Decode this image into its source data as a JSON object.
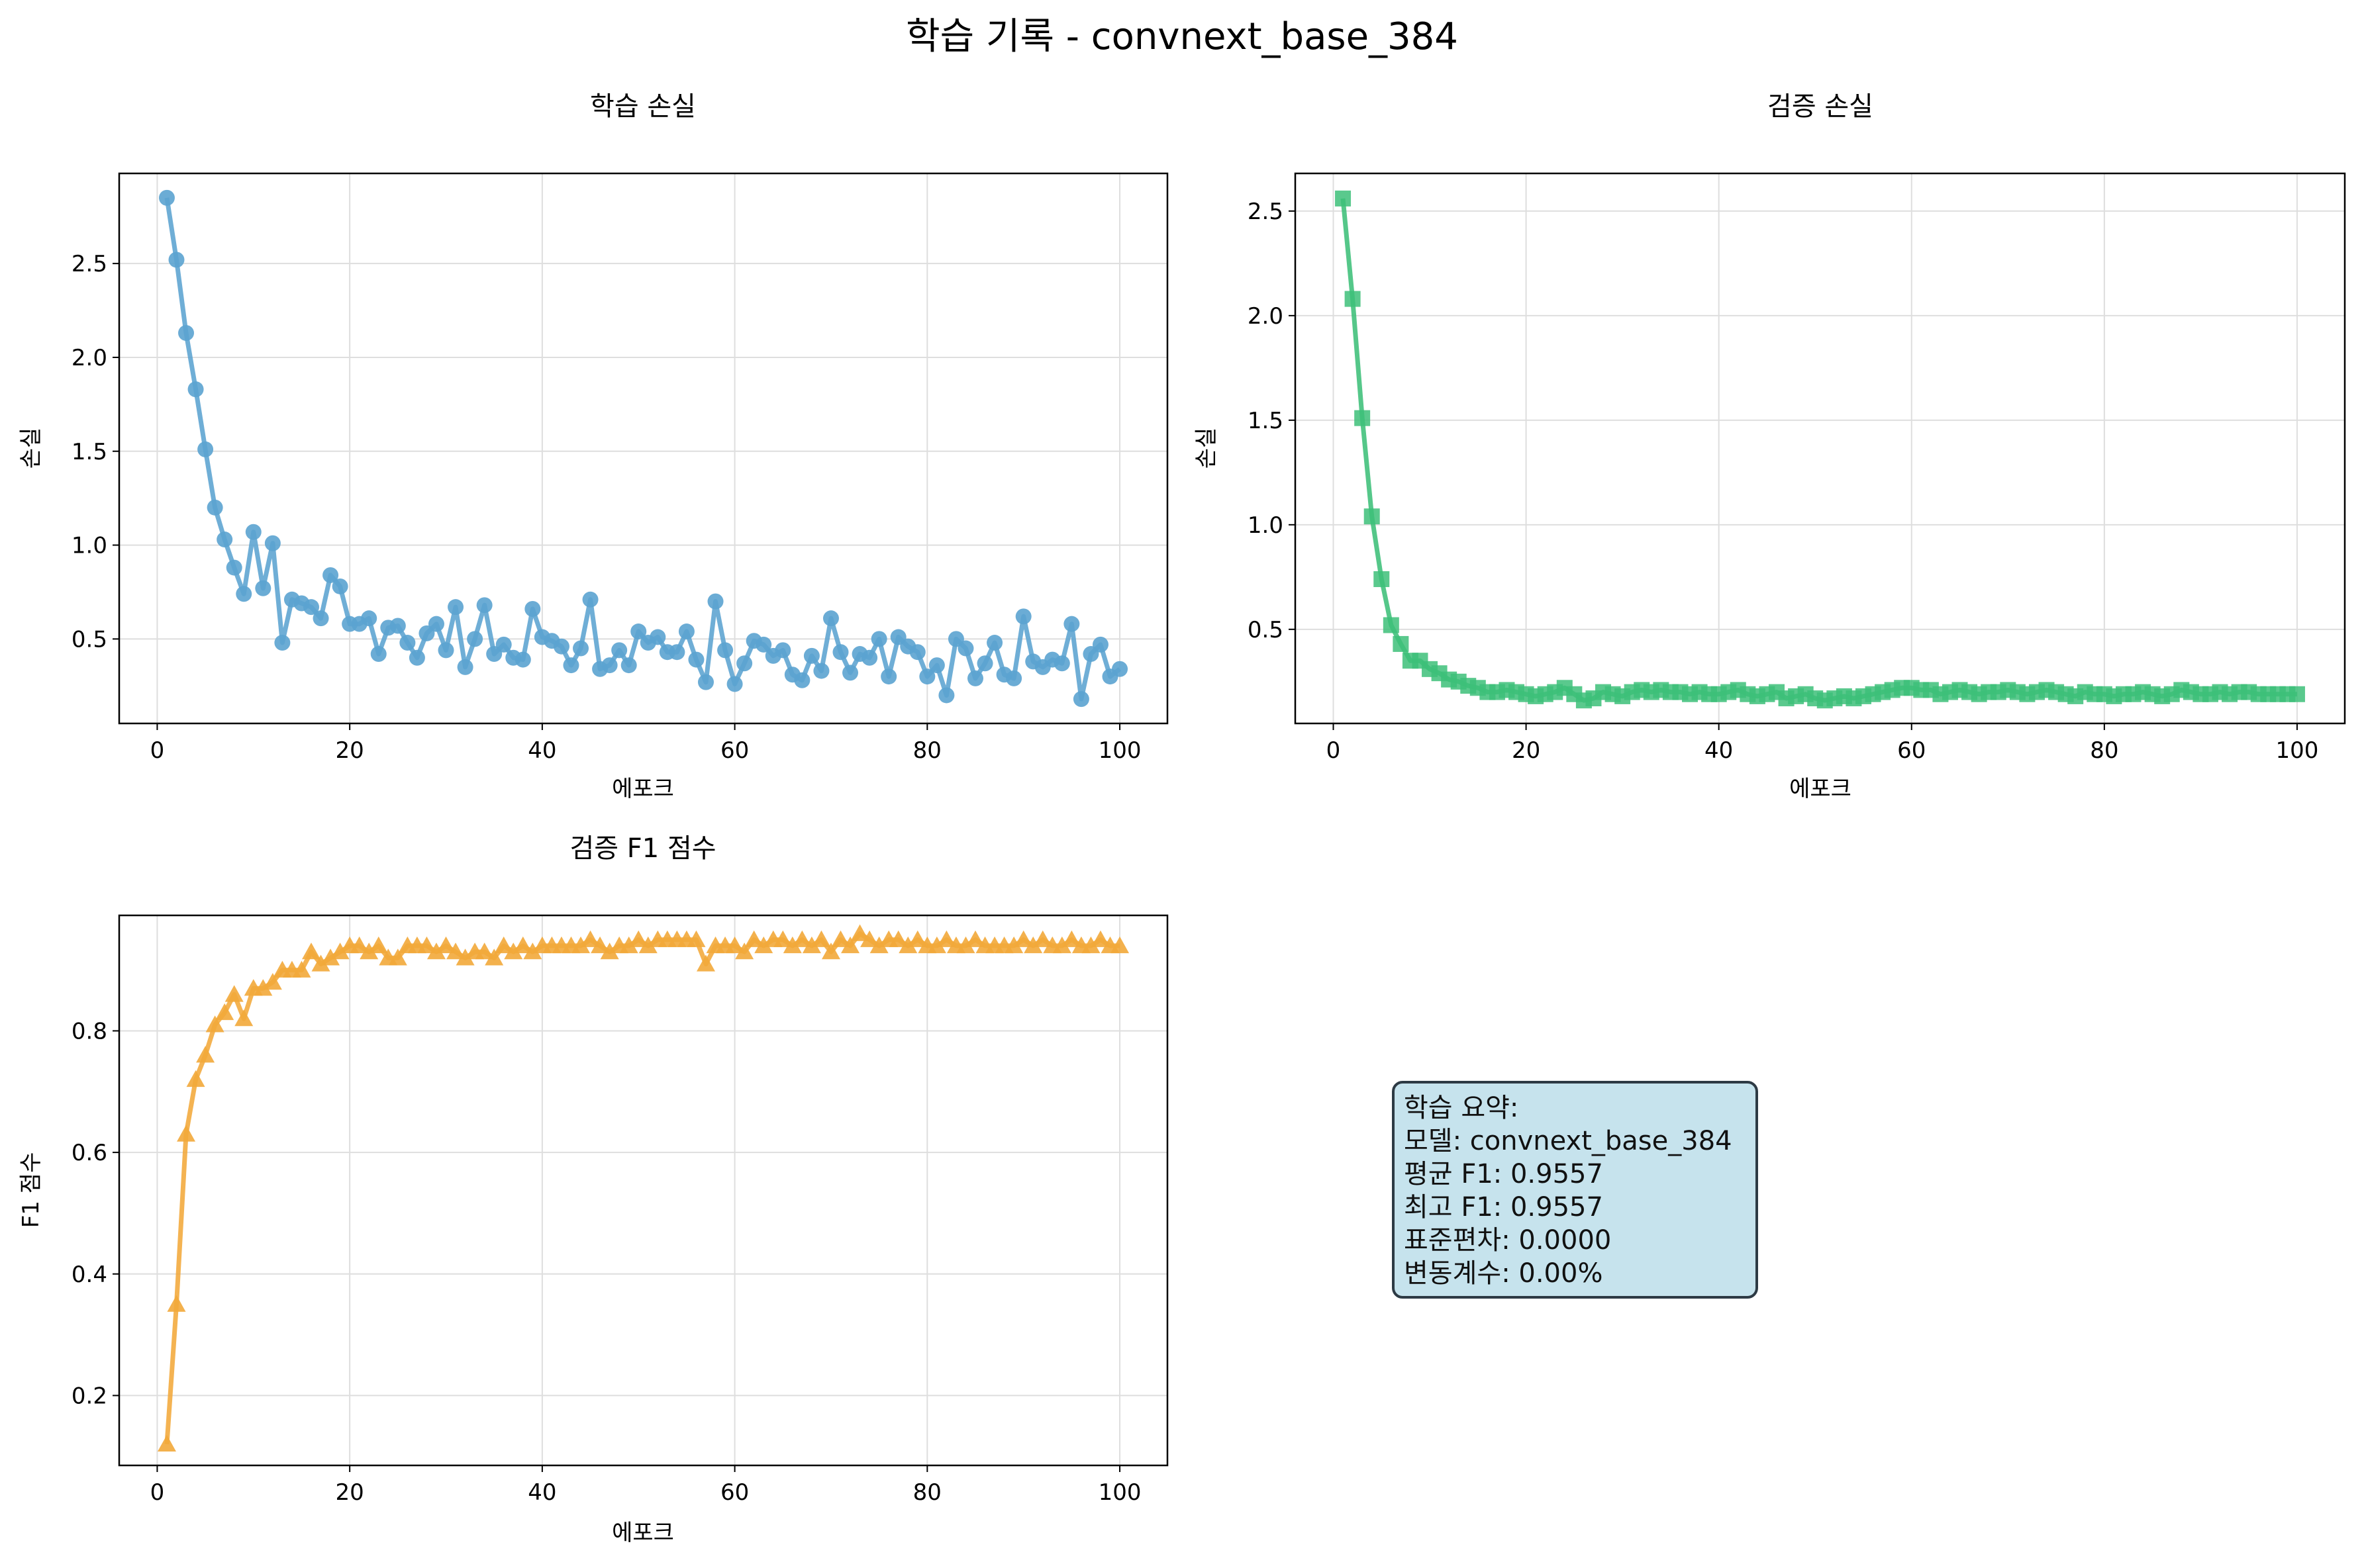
{
  "title": "학습 기록 - convnext_base_384",
  "panels": {
    "train_loss": {
      "title": "학습 손실",
      "xlabel": "에포크",
      "ylabel": "손실"
    },
    "val_loss": {
      "title": "검증 손실",
      "xlabel": "에포크",
      "ylabel": "손실"
    },
    "val_f1": {
      "title": "검증 F1 점수",
      "xlabel": "에포크",
      "ylabel": "F1 점수"
    }
  },
  "summary": {
    "heading": "학습 요약:",
    "model": "모델: convnext_base_384",
    "mean_f1": "평균 F1: 0.9557",
    "best_f1": "최고 F1: 0.9557",
    "std": "표준편차: 0.0000",
    "cv": "변동계수: 0.00%"
  },
  "colors": {
    "train_loss": "#5ba3d0",
    "val_loss": "#3dbf79",
    "val_f1": "#f2a83a",
    "summary_bg": "#c6e3ed",
    "summary_border": "#2d3a44"
  },
  "chart_data": [
    {
      "type": "line",
      "name": "train_loss",
      "marker": "circle",
      "title": "학습 손실",
      "xlabel": "에포크",
      "ylabel": "손실",
      "grid": true,
      "xlim": [
        -3.95,
        104.95
      ],
      "ylim": [
        0.05,
        2.98
      ],
      "xticks": [
        0,
        20,
        40,
        60,
        80,
        100
      ],
      "yticks": [
        0.5,
        1.0,
        1.5,
        2.0,
        2.5
      ],
      "ytick_labels": [
        "0.5",
        "1.0",
        "1.5",
        "2.0",
        "2.5"
      ],
      "x": [
        1,
        2,
        3,
        4,
        5,
        6,
        7,
        8,
        9,
        10,
        11,
        12,
        13,
        14,
        15,
        16,
        17,
        18,
        19,
        20,
        21,
        22,
        23,
        24,
        25,
        26,
        27,
        28,
        29,
        30,
        31,
        32,
        33,
        34,
        35,
        36,
        37,
        38,
        39,
        40,
        41,
        42,
        43,
        44,
        45,
        46,
        47,
        48,
        49,
        50,
        51,
        52,
        53,
        54,
        55,
        56,
        57,
        58,
        59,
        60,
        61,
        62,
        63,
        64,
        65,
        66,
        67,
        68,
        69,
        70,
        71,
        72,
        73,
        74,
        75,
        76,
        77,
        78,
        79,
        80,
        81,
        82,
        83,
        84,
        85,
        86,
        87,
        88,
        89,
        90,
        91,
        92,
        93,
        94,
        95,
        96,
        97,
        98,
        99,
        100
      ],
      "y": [
        2.85,
        2.52,
        2.13,
        1.83,
        1.51,
        1.2,
        1.03,
        0.88,
        0.74,
        1.07,
        0.77,
        1.01,
        0.48,
        0.71,
        0.69,
        0.67,
        0.61,
        0.84,
        0.78,
        0.58,
        0.58,
        0.61,
        0.42,
        0.56,
        0.57,
        0.48,
        0.4,
        0.53,
        0.58,
        0.44,
        0.67,
        0.35,
        0.5,
        0.68,
        0.42,
        0.47,
        0.4,
        0.39,
        0.66,
        0.51,
        0.49,
        0.46,
        0.36,
        0.45,
        0.71,
        0.34,
        0.36,
        0.44,
        0.36,
        0.54,
        0.48,
        0.51,
        0.43,
        0.43,
        0.54,
        0.39,
        0.27,
        0.7,
        0.44,
        0.26,
        0.37,
        0.49,
        0.47,
        0.41,
        0.44,
        0.31,
        0.28,
        0.41,
        0.33,
        0.61,
        0.43,
        0.32,
        0.42,
        0.4,
        0.5,
        0.3,
        0.51,
        0.46,
        0.43,
        0.3,
        0.36,
        0.2,
        0.5,
        0.45,
        0.29,
        0.37,
        0.48,
        0.31,
        0.29,
        0.62,
        0.38,
        0.35,
        0.39,
        0.37,
        0.58,
        0.18,
        0.42,
        0.47,
        0.3,
        0.34
      ]
    },
    {
      "type": "line",
      "name": "val_loss",
      "marker": "square",
      "title": "검증 손실",
      "xlabel": "에포크",
      "ylabel": "손실",
      "grid": true,
      "xlim": [
        -3.95,
        104.95
      ],
      "ylim": [
        0.05,
        2.68
      ],
      "xticks": [
        0,
        20,
        40,
        60,
        80,
        100
      ],
      "yticks": [
        0.5,
        1.0,
        1.5,
        2.0,
        2.5
      ],
      "ytick_labels": [
        "0.5",
        "1.0",
        "1.5",
        "2.0",
        "2.5"
      ],
      "x": [
        1,
        2,
        3,
        4,
        5,
        6,
        7,
        8,
        9,
        10,
        11,
        12,
        13,
        14,
        15,
        16,
        17,
        18,
        19,
        20,
        21,
        22,
        23,
        24,
        25,
        26,
        27,
        28,
        29,
        30,
        31,
        32,
        33,
        34,
        35,
        36,
        37,
        38,
        39,
        40,
        41,
        42,
        43,
        44,
        45,
        46,
        47,
        48,
        49,
        50,
        51,
        52,
        53,
        54,
        55,
        56,
        57,
        58,
        59,
        60,
        61,
        62,
        63,
        64,
        65,
        66,
        67,
        68,
        69,
        70,
        71,
        72,
        73,
        74,
        75,
        76,
        77,
        78,
        79,
        80,
        81,
        82,
        83,
        84,
        85,
        86,
        87,
        88,
        89,
        90,
        91,
        92,
        93,
        94,
        95,
        96,
        97,
        98,
        99,
        100
      ],
      "y": [
        2.56,
        2.08,
        1.51,
        1.04,
        0.74,
        0.52,
        0.43,
        0.35,
        0.35,
        0.31,
        0.29,
        0.26,
        0.25,
        0.23,
        0.22,
        0.2,
        0.2,
        0.21,
        0.2,
        0.19,
        0.18,
        0.19,
        0.2,
        0.22,
        0.19,
        0.16,
        0.17,
        0.2,
        0.19,
        0.18,
        0.2,
        0.21,
        0.2,
        0.21,
        0.2,
        0.2,
        0.19,
        0.2,
        0.19,
        0.19,
        0.2,
        0.21,
        0.19,
        0.18,
        0.19,
        0.2,
        0.17,
        0.18,
        0.19,
        0.17,
        0.16,
        0.17,
        0.18,
        0.17,
        0.18,
        0.19,
        0.2,
        0.21,
        0.22,
        0.22,
        0.21,
        0.21,
        0.19,
        0.2,
        0.21,
        0.2,
        0.19,
        0.2,
        0.2,
        0.21,
        0.2,
        0.19,
        0.2,
        0.21,
        0.2,
        0.19,
        0.18,
        0.2,
        0.19,
        0.19,
        0.18,
        0.19,
        0.19,
        0.2,
        0.19,
        0.18,
        0.19,
        0.21,
        0.2,
        0.19,
        0.19,
        0.2,
        0.19,
        0.2,
        0.2,
        0.19,
        0.19,
        0.19,
        0.19,
        0.19
      ]
    },
    {
      "type": "line",
      "name": "val_f1",
      "marker": "triangle",
      "title": "검증 F1 점수",
      "xlabel": "에포크",
      "ylabel": "F1 점수",
      "grid": true,
      "xlim": [
        -3.95,
        104.95
      ],
      "ylim": [
        0.085,
        0.99
      ],
      "xticks": [
        0,
        20,
        40,
        60,
        80,
        100
      ],
      "yticks": [
        0.2,
        0.4,
        0.6,
        0.8
      ],
      "ytick_labels": [
        "0.2",
        "0.4",
        "0.6",
        "0.8"
      ],
      "x": [
        1,
        2,
        3,
        4,
        5,
        6,
        7,
        8,
        9,
        10,
        11,
        12,
        13,
        14,
        15,
        16,
        17,
        18,
        19,
        20,
        21,
        22,
        23,
        24,
        25,
        26,
        27,
        28,
        29,
        30,
        31,
        32,
        33,
        34,
        35,
        36,
        37,
        38,
        39,
        40,
        41,
        42,
        43,
        44,
        45,
        46,
        47,
        48,
        49,
        50,
        51,
        52,
        53,
        54,
        55,
        56,
        57,
        58,
        59,
        60,
        61,
        62,
        63,
        64,
        65,
        66,
        67,
        68,
        69,
        70,
        71,
        72,
        73,
        74,
        75,
        76,
        77,
        78,
        79,
        80,
        81,
        82,
        83,
        84,
        85,
        86,
        87,
        88,
        89,
        90,
        91,
        92,
        93,
        94,
        95,
        96,
        97,
        98,
        99,
        100
      ],
      "y": [
        0.12,
        0.35,
        0.63,
        0.72,
        0.76,
        0.81,
        0.83,
        0.86,
        0.82,
        0.87,
        0.87,
        0.88,
        0.9,
        0.9,
        0.9,
        0.93,
        0.91,
        0.92,
        0.93,
        0.94,
        0.94,
        0.93,
        0.94,
        0.92,
        0.92,
        0.94,
        0.94,
        0.94,
        0.93,
        0.94,
        0.93,
        0.92,
        0.93,
        0.93,
        0.92,
        0.94,
        0.93,
        0.94,
        0.93,
        0.94,
        0.94,
        0.94,
        0.94,
        0.94,
        0.95,
        0.94,
        0.93,
        0.94,
        0.94,
        0.95,
        0.94,
        0.95,
        0.95,
        0.95,
        0.95,
        0.95,
        0.91,
        0.94,
        0.94,
        0.94,
        0.93,
        0.95,
        0.94,
        0.95,
        0.95,
        0.94,
        0.95,
        0.94,
        0.95,
        0.93,
        0.95,
        0.94,
        0.96,
        0.95,
        0.94,
        0.95,
        0.95,
        0.94,
        0.95,
        0.94,
        0.94,
        0.95,
        0.94,
        0.94,
        0.95,
        0.94,
        0.94,
        0.94,
        0.94,
        0.95,
        0.94,
        0.95,
        0.94,
        0.94,
        0.95,
        0.94,
        0.94,
        0.95,
        0.94,
        0.94
      ]
    }
  ]
}
